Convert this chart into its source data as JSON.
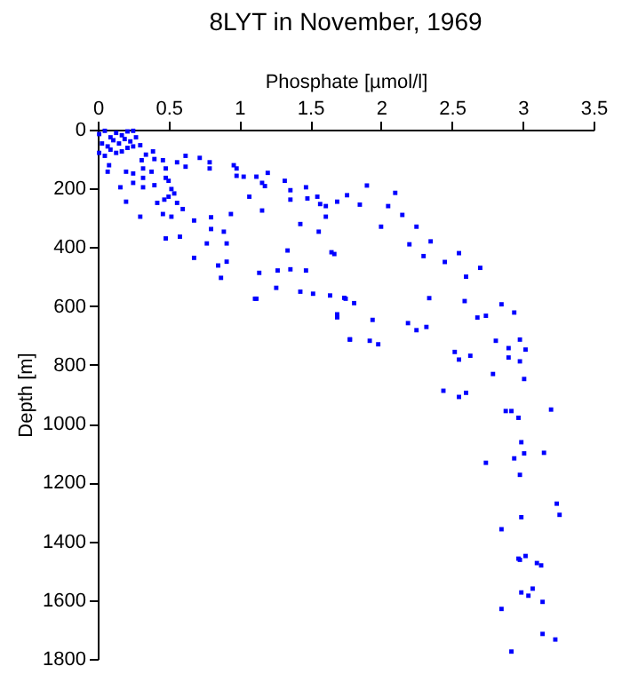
{
  "chart_data": {
    "type": "scatter",
    "title": "8LYT in November, 1969",
    "xlabel": "Phosphate [µmol/l]",
    "ylabel": "Depth [m]",
    "xlim": [
      0,
      3.5
    ],
    "xticks": [
      0,
      0.5,
      1,
      1.5,
      2,
      2.5,
      3,
      3.5
    ],
    "ylim": [
      1800,
      0
    ],
    "yticks": [
      0,
      200,
      400,
      600,
      800,
      1000,
      1200,
      1400,
      1600,
      1800
    ],
    "grid": false,
    "marker": "square",
    "series": [
      {
        "color": "#0000ff",
        "x": [
          0.01,
          0.05,
          0.09,
          0.13,
          0.17,
          0.21,
          0.25,
          0.03,
          0.07,
          0.11,
          0.15,
          0.19,
          0.23,
          0.27,
          0.01,
          0.05,
          0.09,
          0.13,
          0.17,
          0.21,
          0.25,
          0.3,
          0.08,
          0.07,
          0.2,
          0.25,
          0.32,
          0.32,
          0.39,
          0.4,
          0.46,
          0.56,
          0.62,
          0.72,
          0.79,
          0.79,
          0.62,
          0.48,
          0.38,
          0.31,
          0.34,
          0.16,
          0.2,
          0.25,
          0.32,
          0.4,
          0.48,
          0.5,
          0.52,
          0.54,
          0.5,
          0.42,
          0.47,
          0.6,
          0.56,
          0.3,
          0.46,
          0.52,
          0.68,
          0.8,
          0.8,
          0.89,
          0.91,
          0.94,
          0.77,
          0.68,
          0.48,
          0.58,
          0.85,
          0.87,
          0.91,
          0.96,
          0.98,
          0.98,
          1.03,
          1.12,
          1.2,
          1.16,
          1.18,
          1.07,
          1.16,
          1.32,
          1.36,
          1.36,
          1.47,
          1.48,
          1.55,
          1.57,
          1.61,
          1.69,
          1.76,
          1.61,
          1.43,
          1.56,
          1.34,
          1.65,
          1.67,
          1.14,
          1.27,
          1.36,
          1.47,
          1.12,
          1.26,
          1.43,
          1.52,
          1.64,
          1.74,
          1.69,
          1.69,
          1.78,
          2.1,
          2.15,
          2.25,
          2.35,
          2.45,
          2.55,
          2.05,
          2.3,
          2.6,
          2.7,
          2.2,
          1.9,
          1.85,
          2.0,
          1.11,
          1.75,
          1.81,
          1.69,
          1.94,
          2.19,
          2.25,
          2.32,
          1.78,
          1.92,
          1.98,
          2.34,
          2.59,
          2.85,
          2.94,
          2.68,
          2.74,
          2.81,
          2.98,
          2.9,
          2.52,
          2.55,
          2.63,
          2.9,
          2.98,
          2.79,
          3.01,
          2.44,
          2.55,
          2.6,
          2.88,
          2.92,
          2.97,
          2.99,
          2.94,
          2.74,
          3.01,
          2.98,
          2.99,
          2.85,
          2.97,
          2.99,
          3.15,
          3.24,
          3.26,
          3.02,
          3.13,
          3.04,
          3.2,
          3.02,
          2.98,
          3.1,
          3.07,
          3.14,
          2.85,
          3.14,
          3.23,
          2.92
        ],
        "values": [
          15,
          4,
          26,
          11,
          19,
          6,
          4,
          47,
          57,
          36,
          47,
          32,
          40,
          26,
          79,
          89,
          68,
          79,
          74,
          62,
          57,
          53,
          121,
          143,
          143,
          149,
          132,
          164,
          74,
          100,
          104,
          111,
          89,
          96,
          111,
          132,
          126,
          132,
          143,
          104,
          85,
          196,
          245,
          181,
          196,
          189,
          164,
          174,
          202,
          217,
          228,
          249,
          238,
          270,
          249,
          296,
          287,
          296,
          309,
          298,
          338,
          347,
          387,
          287,
          387,
          436,
          370,
          364,
          462,
          504,
          449,
          121,
          132,
          157,
          160,
          160,
          147,
          181,
          192,
          228,
          275,
          174,
          206,
          238,
          196,
          234,
          228,
          253,
          260,
          245,
          223,
          296,
          321,
          347,
          411,
          417,
          423,
          487,
          479,
          475,
          479,
          575,
          538,
          551,
          558,
          564,
          572,
          628,
          638,
          713,
          215,
          290,
          330,
          380,
          450,
          420,
          260,
          430,
          500,
          470,
          390,
          190,
          255,
          330,
          575,
          575,
          590,
          637,
          647,
          658,
          682,
          671,
          714,
          718,
          730,
          573,
          583,
          594,
          622,
          639,
          633,
          718,
          714,
          743,
          756,
          782,
          769,
          775,
          788,
          831,
          848,
          888,
          909,
          895,
          957,
          957,
          980,
          1063,
          1118,
          1133,
          1101,
          1174,
          1318,
          1359,
          1459,
          1574,
          1099,
          1272,
          1310,
          1450,
          1482,
          1585,
          952,
          748,
          1463,
          1474,
          1561,
          1606,
          1630,
          1715,
          1734,
          1775
        ]
      }
    ]
  }
}
